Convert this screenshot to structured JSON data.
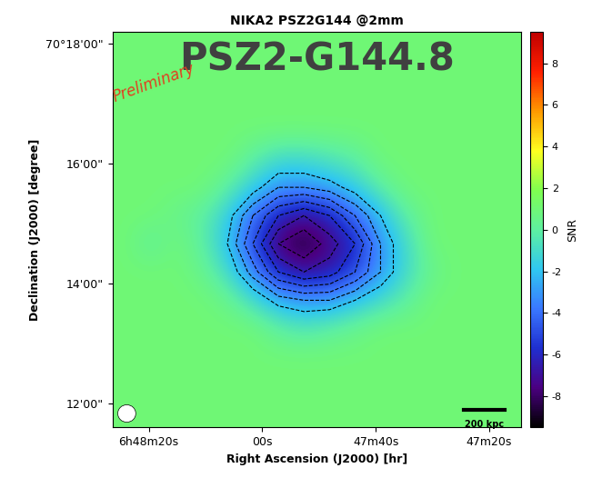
{
  "chart_data": {
    "type": "heatmap",
    "title": "NIKA2 PSZ2G144 @2mm",
    "annotations": [
      "PSZ2-G144.8",
      "Preliminary",
      "200 kpc"
    ],
    "x_label": "Right Ascension (J2000) [hr]",
    "y_label": "Declination (J2000) [degree]",
    "xlim": [
      2906.4,
      2834.4
    ],
    "xticks": [
      {
        "value": 2900,
        "label": "6h48m20s"
      },
      {
        "value": 2880,
        "label": "00s"
      },
      {
        "value": 2860,
        "label": "47m40s"
      },
      {
        "value": 2840,
        "label": "47m20s"
      }
    ],
    "ylim": [
      4211.6,
      4218.2
    ],
    "yticks": [
      {
        "value": 4218,
        "label": "70°18'00\""
      },
      {
        "value": 4216,
        "label": "16'00\""
      },
      {
        "value": 4214,
        "label": "14'00\""
      },
      {
        "value": 4212,
        "label": "12'00\""
      }
    ],
    "cells": [
      [
        1,
        1,
        1,
        1,
        1,
        1,
        1,
        1,
        1,
        1,
        1,
        1,
        1,
        1,
        1,
        1
      ],
      [
        1,
        1,
        1,
        1,
        1,
        1,
        1,
        1,
        1,
        1,
        1,
        1,
        1,
        1,
        1,
        1
      ],
      [
        1,
        1,
        1,
        1,
        1,
        1,
        1,
        1,
        1,
        1,
        1,
        1,
        1,
        1,
        1,
        1
      ],
      [
        1,
        1,
        1,
        1,
        1,
        1,
        1,
        1,
        1,
        1,
        1,
        1,
        1,
        1,
        1,
        1
      ],
      [
        1,
        1,
        1,
        1,
        1,
        0,
        -1,
        -1,
        -0.5,
        0,
        1,
        1,
        1,
        1,
        1,
        1
      ],
      [
        1,
        1,
        1,
        1,
        0,
        -1.5,
        -3,
        -3,
        -2.5,
        -1.5,
        0,
        1,
        1,
        1,
        1,
        1
      ],
      [
        1,
        1,
        0.5,
        0,
        -1.5,
        -4,
        -6,
        -7,
        -6,
        -4,
        -2,
        0,
        1,
        1,
        1,
        1
      ],
      [
        1,
        0,
        1,
        0,
        -2,
        -5,
        -8,
        -9,
        -7.5,
        -6,
        -3,
        -1,
        1,
        1,
        1,
        1
      ],
      [
        1,
        1,
        1,
        0.5,
        -1,
        -3.5,
        -6,
        -7,
        -6.5,
        -5,
        -3,
        -1,
        0.5,
        1,
        1,
        1
      ],
      [
        1,
        1,
        1,
        1,
        0.5,
        -1,
        -2.5,
        -3,
        -3,
        -2,
        -1,
        0,
        1,
        1,
        1,
        1
      ],
      [
        1,
        1,
        1,
        1,
        1,
        1,
        0,
        -0.5,
        0,
        0.5,
        1,
        1,
        1,
        1,
        1,
        1
      ],
      [
        1,
        1,
        1,
        1,
        1,
        1,
        1,
        1,
        1,
        1,
        1,
        1,
        1,
        1,
        1,
        1
      ],
      [
        1,
        1,
        1,
        1,
        1,
        1,
        1,
        1,
        1,
        1,
        1,
        1,
        1,
        1,
        1,
        1
      ],
      [
        1,
        1,
        1,
        1,
        1,
        1,
        1,
        1,
        1,
        1,
        1,
        1,
        1,
        1,
        1,
        1
      ]
    ],
    "contour_levels": [
      -8,
      -7,
      -6,
      -5,
      -4,
      -3,
      -2
    ],
    "colorbar": {
      "label": "SNR",
      "range": [
        -9.5,
        9.5
      ],
      "ticks": [
        -8,
        -6,
        -4,
        -2,
        0,
        2,
        4,
        6,
        8
      ]
    }
  }
}
